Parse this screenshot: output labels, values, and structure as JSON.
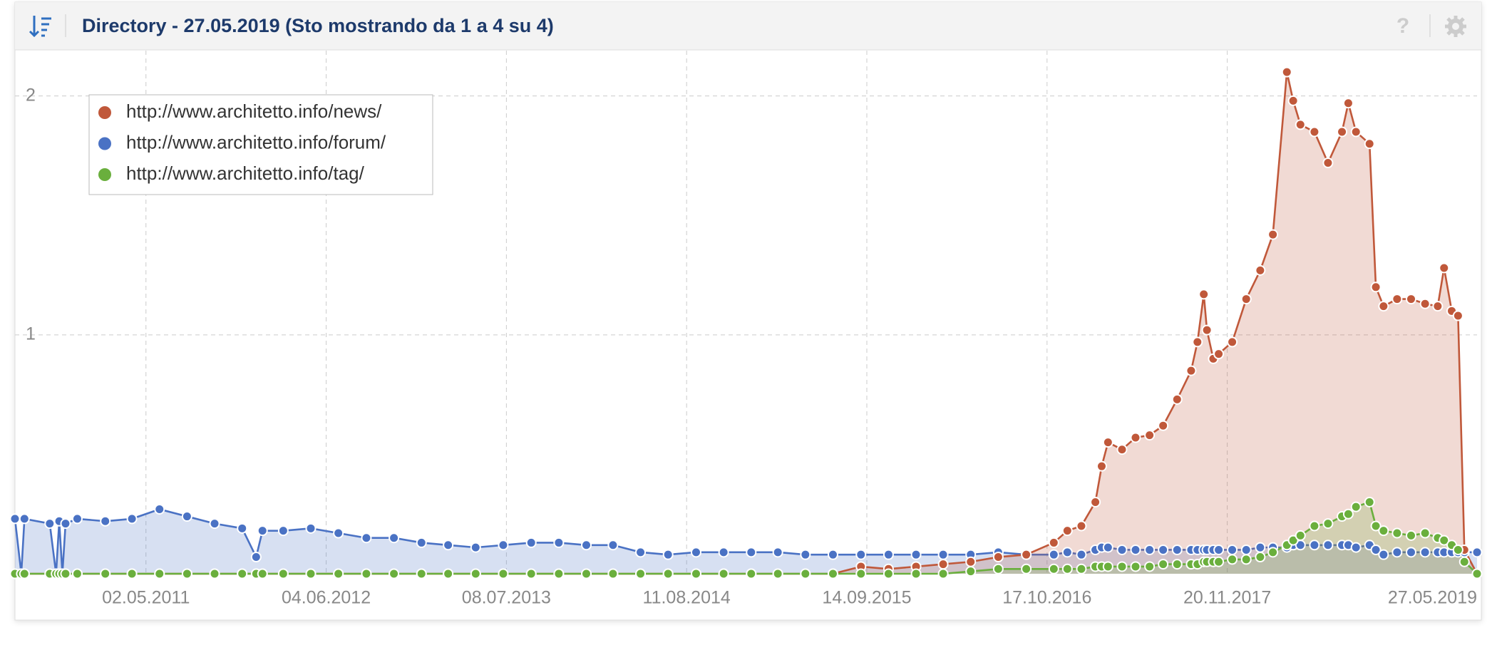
{
  "header": {
    "title": "Directory - 27.05.2019 (Sto mostrando da 1 a 4 su 4)",
    "help": "?"
  },
  "chart_data": {
    "type": "line",
    "area": true,
    "grid": true,
    "legend": "top-left",
    "x": [
      "16.07.2010",
      "30.07.2010",
      "06.08.2010",
      "01.10.2010",
      "15.10.2010",
      "22.10.2010",
      "29.10.2010",
      "05.11.2010",
      "01.12.2010",
      "01.02.2011",
      "01.04.2011",
      "01.06.2011",
      "01.08.2011",
      "01.10.2011",
      "01.12.2011",
      "01.01.2012",
      "15.01.2012",
      "01.03.2012",
      "01.05.2012",
      "01.07.2012",
      "01.09.2012",
      "01.11.2012",
      "01.01.2013",
      "01.03.2013",
      "01.05.2013",
      "01.07.2013",
      "01.09.2013",
      "01.11.2013",
      "01.01.2014",
      "01.03.2014",
      "01.05.2014",
      "01.07.2014",
      "01.09.2014",
      "01.11.2014",
      "01.01.2015",
      "01.03.2015",
      "01.05.2015",
      "01.07.2015",
      "01.09.2015",
      "01.11.2015",
      "01.01.2016",
      "01.03.2016",
      "01.05.2016",
      "01.07.2016",
      "01.09.2016",
      "01.11.2016",
      "01.12.2016",
      "01.01.2017",
      "01.02.2017",
      "15.02.2017",
      "01.03.2017",
      "01.04.2017",
      "01.05.2017",
      "01.06.2017",
      "01.07.2017",
      "01.08.2017",
      "01.09.2017",
      "15.09.2017",
      "29.09.2017",
      "06.10.2017",
      "20.10.2017",
      "01.11.2017",
      "01.12.2017",
      "01.01.2018",
      "01.02.2018",
      "01.03.2018",
      "01.04.2018",
      "15.04.2018",
      "01.05.2018",
      "01.06.2018",
      "01.07.2018",
      "01.08.2018",
      "15.08.2018",
      "01.09.2018",
      "01.10.2018",
      "15.10.2018",
      "01.11.2018",
      "01.12.2018",
      "01.01.2019",
      "01.02.2019",
      "01.03.2019",
      "15.03.2019",
      "01.04.2019",
      "15.04.2019",
      "29.04.2019",
      "27.05.2019"
    ],
    "series": [
      {
        "name": "http://www.architetto.info/forum/",
        "color": "#4a72c4",
        "values": [
          0.23,
          0,
          0.23,
          0.21,
          0,
          0.22,
          0,
          0.21,
          0.23,
          0.22,
          0.23,
          0.27,
          0.24,
          0.21,
          0.19,
          0.07,
          0.18,
          0.18,
          0.19,
          0.17,
          0.15,
          0.15,
          0.13,
          0.12,
          0.11,
          0.12,
          0.13,
          0.13,
          0.12,
          0.12,
          0.09,
          0.08,
          0.09,
          0.09,
          0.09,
          0.09,
          0.08,
          0.08,
          0.08,
          0.08,
          0.08,
          0.08,
          0.08,
          0.09,
          0.08,
          0.08,
          0.09,
          0.08,
          0.1,
          0.11,
          0.11,
          0.1,
          0.1,
          0.1,
          0.1,
          0.1,
          0.1,
          0.1,
          0.1,
          0.1,
          0.1,
          0.1,
          0.1,
          0.1,
          0.11,
          0.11,
          0.11,
          0.12,
          0.12,
          0.12,
          0.12,
          0.12,
          0.12,
          0.11,
          0.12,
          0.1,
          0.08,
          0.09,
          0.09,
          0.09,
          0.09,
          0.09,
          0.09,
          0.09,
          0.09,
          0.09
        ]
      },
      {
        "name": "http://www.architetto.info/news/",
        "color": "#c0583a",
        "values": [
          0,
          0,
          0,
          0,
          0,
          0,
          0,
          0,
          0,
          0,
          0,
          0,
          0,
          0,
          0,
          0,
          0,
          0,
          0,
          0,
          0,
          0,
          0,
          0,
          0,
          0,
          0,
          0,
          0,
          0,
          0,
          0,
          0,
          0,
          0,
          0,
          0,
          0,
          0.03,
          0.02,
          0.03,
          0.04,
          0.05,
          0.07,
          0.08,
          0.13,
          0.18,
          0.2,
          0.3,
          0.45,
          0.55,
          0.52,
          0.57,
          0.58,
          0.62,
          0.73,
          0.85,
          0.97,
          1.17,
          1.02,
          0.9,
          0.92,
          0.97,
          1.15,
          1.27,
          1.42,
          2.1,
          1.98,
          1.88,
          1.85,
          1.72,
          1.85,
          1.97,
          1.85,
          1.8,
          1.2,
          1.12,
          1.15,
          1.15,
          1.13,
          1.12,
          1.28,
          1.1,
          1.08,
          0.1,
          0
        ]
      },
      {
        "name": "http://www.architetto.info/tag/",
        "color": "#6aaf3d",
        "values": [
          0,
          0,
          0,
          0,
          0,
          0,
          0,
          0,
          0,
          0,
          0,
          0,
          0,
          0,
          0,
          0,
          0,
          0,
          0,
          0,
          0,
          0,
          0,
          0,
          0,
          0,
          0,
          0,
          0,
          0,
          0,
          0,
          0,
          0,
          0,
          0,
          0,
          0,
          0,
          0,
          0,
          0,
          0.01,
          0.02,
          0.02,
          0.02,
          0.02,
          0.02,
          0.03,
          0.03,
          0.03,
          0.03,
          0.03,
          0.03,
          0.04,
          0.04,
          0.04,
          0.04,
          0.05,
          0.05,
          0.05,
          0.05,
          0.06,
          0.06,
          0.07,
          0.09,
          0.12,
          0.14,
          0.16,
          0.2,
          0.21,
          0.24,
          0.25,
          0.28,
          0.3,
          0.2,
          0.18,
          0.17,
          0.16,
          0.17,
          0.15,
          0.14,
          0.12,
          0.1,
          0.05,
          0
        ]
      }
    ],
    "legend_order": [
      1,
      0,
      2
    ],
    "xlim": [
      "16.07.2010",
      "27.05.2019"
    ],
    "xticks": [
      "02.05.2011",
      "04.06.2012",
      "08.07.2013",
      "11.08.2014",
      "14.09.2015",
      "17.10.2016",
      "20.11.2017",
      "27.05.2019"
    ],
    "ylim": [
      0,
      2.19
    ],
    "yticks": [
      1,
      2
    ]
  }
}
